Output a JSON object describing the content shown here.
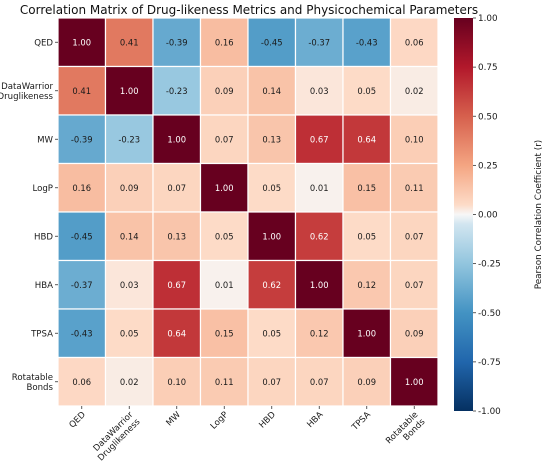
{
  "chart_data": {
    "type": "heatmap",
    "title": "Correlation Matrix of Drug-likeness Metrics and Physicochemical Parameters",
    "rows": [
      [
        "QED"
      ],
      [
        "DataWarrior",
        "Druglikeness"
      ],
      [
        "MW"
      ],
      [
        "LogP"
      ],
      [
        "HBD"
      ],
      [
        "HBA"
      ],
      [
        "TPSA"
      ],
      [
        "Rotatable",
        "Bonds"
      ]
    ],
    "columns": [
      [
        "QED"
      ],
      [
        "DataWarrior",
        "Druglikeness"
      ],
      [
        "MW"
      ],
      [
        "LogP"
      ],
      [
        "HBD"
      ],
      [
        "HBA"
      ],
      [
        "TPSA"
      ],
      [
        "Rotatable",
        "Bonds"
      ]
    ],
    "values": [
      [
        1.0,
        0.41,
        -0.39,
        0.16,
        -0.45,
        -0.37,
        -0.43,
        0.06
      ],
      [
        0.41,
        1.0,
        -0.23,
        0.09,
        0.14,
        0.03,
        0.05,
        0.02
      ],
      [
        -0.39,
        -0.23,
        1.0,
        0.07,
        0.13,
        0.67,
        0.64,
        0.1
      ],
      [
        0.16,
        0.09,
        0.07,
        1.0,
        0.05,
        0.01,
        0.15,
        0.11
      ],
      [
        -0.45,
        0.14,
        0.13,
        0.05,
        1.0,
        0.62,
        0.05,
        0.07
      ],
      [
        -0.37,
        0.03,
        0.67,
        0.01,
        0.62,
        1.0,
        0.12,
        0.07
      ],
      [
        -0.43,
        0.05,
        0.64,
        0.15,
        0.05,
        0.12,
        1.0,
        0.09
      ],
      [
        0.06,
        0.02,
        0.1,
        0.11,
        0.07,
        0.07,
        0.09,
        1.0
      ]
    ],
    "value_format": "2dp",
    "colormap": "RdBu_r",
    "vmin": -1.0,
    "vmax": 1.0,
    "colorbar": {
      "label": "Pearson Correlation Coefficient (r)",
      "ticks": [
        "1.00",
        "0.75",
        "0.50",
        "0.25",
        "0.00",
        "-0.25",
        "-0.50",
        "-0.75",
        "-1.00"
      ],
      "tick_values": [
        1.0,
        0.75,
        0.5,
        0.25,
        0.0,
        -0.25,
        -0.5,
        -0.75,
        -1.0
      ]
    },
    "grid": true,
    "grid_color": "#ffffff"
  }
}
